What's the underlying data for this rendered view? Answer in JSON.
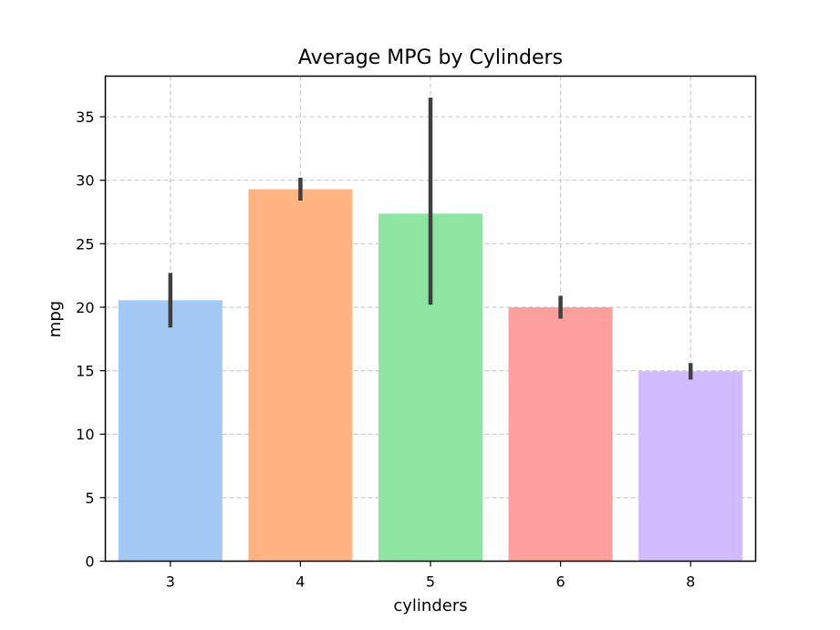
{
  "chart_data": {
    "type": "bar",
    "title": "Average MPG by Cylinders",
    "xlabel": "cylinders",
    "ylabel": "mpg",
    "categories": [
      "3",
      "4",
      "5",
      "6",
      "8"
    ],
    "values": [
      20.55,
      29.29,
      27.37,
      19.99,
      14.96
    ],
    "error_bars": [
      {
        "low": 18.4,
        "high": 22.7
      },
      {
        "low": 28.4,
        "high": 30.2
      },
      {
        "low": 20.2,
        "high": 36.5
      },
      {
        "low": 19.1,
        "high": 20.9
      },
      {
        "low": 14.3,
        "high": 15.6
      }
    ],
    "colors": [
      "#a1c9f4",
      "#ffb482",
      "#8de5a1",
      "#ff9f9b",
      "#d0bbff"
    ],
    "error_bar_color": "#3f3f3f",
    "ylim": [
      0,
      38.2
    ],
    "yticks": [
      0,
      5,
      10,
      15,
      20,
      25,
      30,
      35
    ],
    "grid": true,
    "legend": "none"
  }
}
